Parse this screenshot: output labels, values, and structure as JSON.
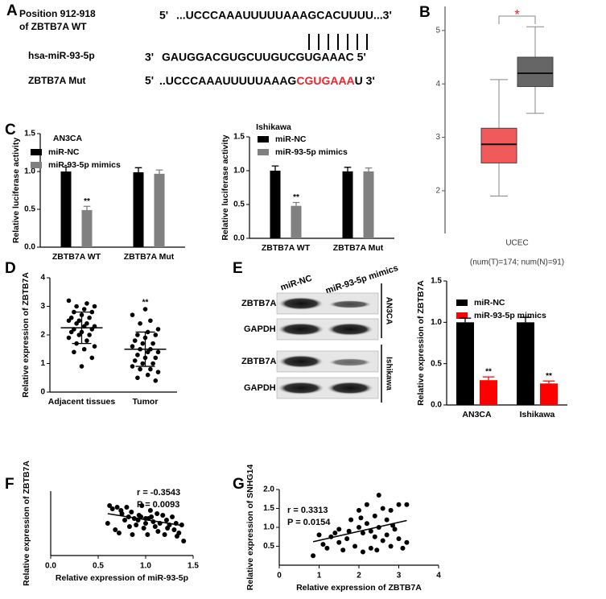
{
  "panel_labels": [
    "A",
    "B",
    "C",
    "D",
    "E",
    "F",
    "G"
  ],
  "panel_a": {
    "wt_label": [
      "Position 912-918",
      "of ZBTB7A WT"
    ],
    "wt_end5": "5'",
    "wt_seq": "...UCCCAAAUUUUUAAAGCACUUUU...3'",
    "mir_label": "hsa-miR-93-5p",
    "mir_end3": "3'",
    "mir_seq": "GAUGGACGUGCUUGUCGUGAAAC 5'",
    "mut_label": "ZBTB7A  Mut",
    "mut_end5": "5'",
    "mut_seq": [
      "..UCCCAAAUUUUUAAAG",
      "CGUGAAA",
      "U 3'"
    ]
  },
  "blot": {
    "columns": [
      "miR-NC",
      "miR-93-5p mimics"
    ],
    "rows": [
      "ZBTB7A",
      "GAPDH",
      "ZBTB7A",
      "GAPDH"
    ],
    "groups": [
      "AN3CA",
      "Ishikawa"
    ]
  },
  "chart_data": [
    {
      "type": "box",
      "xlabel": "UCEC",
      "subtitle": "(num(T)=174; num(N)=91)",
      "categories": [
        null,
        null
      ],
      "boxes": [
        {
          "low": 1.9,
          "q1": 2.52,
          "median": 2.87,
          "q3": 3.17,
          "high": 4.08,
          "color": "#f15a5a"
        },
        {
          "low": 3.45,
          "q1": 3.95,
          "median": 4.2,
          "q3": 4.5,
          "high": 5.07,
          "color": "#666666"
        }
      ],
      "ylim": [
        1.2,
        5.45
      ],
      "yticks": [
        2,
        3,
        4,
        5
      ],
      "significance": "*",
      "significance_color": "#e8262a"
    },
    {
      "type": "bar",
      "title": "AN3CA",
      "ylabel": "Relative luciferase activity",
      "categories": [
        "ZBTB7A WT",
        "ZBTB7A Mut"
      ],
      "series": [
        {
          "name": "miR-NC",
          "color": "#000000",
          "values": [
            1.0,
            0.99
          ],
          "errors": [
            0.06,
            0.06
          ],
          "significance": [
            null,
            null
          ]
        },
        {
          "name": "miR-93-5p mimics",
          "color": "#808080",
          "values": [
            0.49,
            0.97
          ],
          "errors": [
            0.05,
            0.05
          ],
          "significance": [
            "**",
            null
          ]
        }
      ],
      "ylim": [
        0,
        1.5
      ],
      "yticks": [
        {
          "value": 0,
          "label": "0.0"
        },
        {
          "value": 0.5,
          "label": "0.5"
        },
        {
          "value": 1,
          "label": "1.0"
        },
        {
          "value": 1.5,
          "label": "1.5"
        }
      ]
    },
    {
      "type": "bar",
      "title": "Ishikawa",
      "ylabel": "Relative luciferase activity",
      "categories": [
        "ZBTB7A WT",
        "ZBTB7A Mut"
      ],
      "series": [
        {
          "name": "miR-NC",
          "color": "#000000",
          "values": [
            1.0,
            0.99
          ],
          "errors": [
            0.07,
            0.06
          ],
          "significance": [
            null,
            null
          ]
        },
        {
          "name": "miR-93-5p mimics",
          "color": "#808080",
          "values": [
            0.48,
            0.99
          ],
          "errors": [
            0.05,
            0.05
          ],
          "significance": [
            "**",
            null
          ]
        }
      ],
      "ylim": [
        0,
        1.5
      ],
      "yticks": [
        {
          "value": 0,
          "label": "0.0"
        },
        {
          "value": 0.5,
          "label": "0.5"
        },
        {
          "value": 1,
          "label": "1.0"
        },
        {
          "value": 1.5,
          "label": "1.5"
        }
      ]
    },
    {
      "type": "dot",
      "ylabel": "Relative expression of ZBTB7A",
      "categories": [
        "Adjacent tissues",
        "Tumor"
      ],
      "points": [
        [
          3.2,
          3.1,
          3.0,
          3.0,
          2.9,
          2.8,
          2.8,
          2.7,
          2.6,
          2.6,
          2.5,
          2.5,
          2.4,
          2.4,
          2.3,
          2.3,
          2.2,
          2.2,
          2.1,
          2.1,
          2.0,
          2.0,
          1.9,
          1.8,
          1.7,
          1.6,
          1.5,
          1.4,
          1.2,
          0.9
        ],
        [
          2.7,
          2.5,
          2.4,
          2.2,
          2.1,
          2.0,
          2.0,
          1.9,
          1.8,
          1.7,
          1.7,
          1.6,
          1.5,
          1.5,
          1.4,
          1.4,
          1.3,
          1.2,
          1.2,
          1.1,
          1.0,
          1.0,
          0.9,
          0.8,
          0.8,
          0.7,
          0.6,
          0.5,
          0.4,
          2.9
        ]
      ],
      "means": [
        2.25,
        1.5
      ],
      "sd": [
        0.55,
        0.6
      ],
      "significance": [
        null,
        "**"
      ],
      "ylim": [
        0,
        4
      ],
      "yticks": [
        0,
        1,
        2,
        3,
        4
      ]
    },
    {
      "type": "bar",
      "ylabel": "Relative expression of ZBTB7A",
      "categories": [
        "AN3CA",
        "Ishikawa"
      ],
      "series": [
        {
          "name": "miR-NC",
          "color": "#000000",
          "values": [
            1.0,
            1.0
          ],
          "errors": [
            0.05,
            0.06
          ],
          "significance": [
            null,
            null
          ]
        },
        {
          "name": "miR-93-5p mimics",
          "color": "#ff0000",
          "values": [
            0.3,
            0.26
          ],
          "errors": [
            0.04,
            0.03
          ],
          "significance": [
            "**",
            "**"
          ]
        }
      ],
      "ylim": [
        0,
        1.5
      ],
      "yticks": [
        {
          "value": 0,
          "label": "0.0"
        },
        {
          "value": 0.5,
          "label": "0.5"
        },
        {
          "value": 1,
          "label": "1.0"
        },
        {
          "value": 1.5,
          "label": "1.5"
        }
      ]
    },
    {
      "type": "scatter",
      "xlabel": "Relative expression of miR-93-5p",
      "ylabel": "Relative expression of ZBTB7A",
      "annotations": [
        "r = -0.3543",
        "P = 0.0093"
      ],
      "color": "#000000",
      "x": [
        0.6,
        0.62,
        0.68,
        0.7,
        0.72,
        0.75,
        0.78,
        0.8,
        0.82,
        0.85,
        0.86,
        0.88,
        0.9,
        0.92,
        0.95,
        0.96,
        0.98,
        1.0,
        1.0,
        1.02,
        1.05,
        1.06,
        1.08,
        1.1,
        1.12,
        1.15,
        1.18,
        1.2,
        1.22,
        1.25,
        1.28,
        1.3,
        1.32,
        1.35,
        1.38,
        1.4,
        0.65,
        0.74,
        0.83,
        0.93,
        1.03,
        1.13,
        1.23,
        1.33
      ],
      "y": [
        2.0,
        3.1,
        1.6,
        3.0,
        1.4,
        2.6,
        2.2,
        3.0,
        2.4,
        2.7,
        1.3,
        2.3,
        1.9,
        2.2,
        2.4,
        3.1,
        1.7,
        2.3,
        2.0,
        1.3,
        2.8,
        2.4,
        2.1,
        1.8,
        2.6,
        2.0,
        2.5,
        1.3,
        2.2,
        1.9,
        2.4,
        1.6,
        2.0,
        1.4,
        1.9,
        0.9,
        2.9,
        2.8,
        1.8,
        2.5,
        2.3,
        1.5,
        1.7,
        1.2
      ],
      "fit": {
        "x": [
          0.6,
          1.4
        ],
        "y": [
          2.6,
          1.85
        ]
      },
      "xlim": [
        0,
        1.5
      ],
      "xticks": [
        {
          "value": 0,
          "label": "0.0"
        },
        {
          "value": 0.5,
          "label": "0.5"
        },
        {
          "value": 1,
          "label": "1.0"
        },
        {
          "value": 1.5,
          "label": "1.5"
        }
      ],
      "ylim": [
        0,
        4
      ]
    },
    {
      "type": "scatter",
      "xlabel": "Relative expression of  ZBTB7A",
      "ylabel": "Relative expression of SNHG14",
      "annotations": [
        "r = 0.3313",
        "P = 0.0154"
      ],
      "color": "#000000",
      "x": [
        0.85,
        1.0,
        1.1,
        1.2,
        1.3,
        1.4,
        1.5,
        1.5,
        1.6,
        1.7,
        1.8,
        1.9,
        2.0,
        2.0,
        2.1,
        2.1,
        2.2,
        2.2,
        2.3,
        2.3,
        2.4,
        2.4,
        2.5,
        2.5,
        2.6,
        2.6,
        2.7,
        2.7,
        2.8,
        2.8,
        2.9,
        3.0,
        3.0,
        3.1,
        3.2,
        3.2,
        1.75,
        2.05,
        2.45,
        2.85
      ],
      "y": [
        0.25,
        0.8,
        0.55,
        0.45,
        0.75,
        0.85,
        0.6,
        0.95,
        0.4,
        0.7,
        1.2,
        0.5,
        1.0,
        1.45,
        0.85,
        0.35,
        1.1,
        1.6,
        0.9,
        0.45,
        1.3,
        0.75,
        1.85,
        1.0,
        0.65,
        1.5,
        0.8,
        1.2,
        0.5,
        1.45,
        0.95,
        1.6,
        0.7,
        0.45,
        1.6,
        0.6,
        0.9,
        1.25,
        0.4,
        1.05
      ],
      "fit": {
        "x": [
          0.85,
          3.2
        ],
        "y": [
          0.62,
          1.18
        ]
      },
      "xlim": [
        0,
        4
      ],
      "xticks": [
        0,
        1,
        2,
        3,
        4
      ],
      "ylim": [
        0,
        2
      ],
      "yticks": [
        {
          "value": 0.5,
          "label": "0.5"
        },
        {
          "value": 1,
          "label": "1.0"
        },
        {
          "value": 1.5,
          "label": "1.5"
        },
        {
          "value": 2,
          "label": "2.0"
        }
      ]
    }
  ]
}
